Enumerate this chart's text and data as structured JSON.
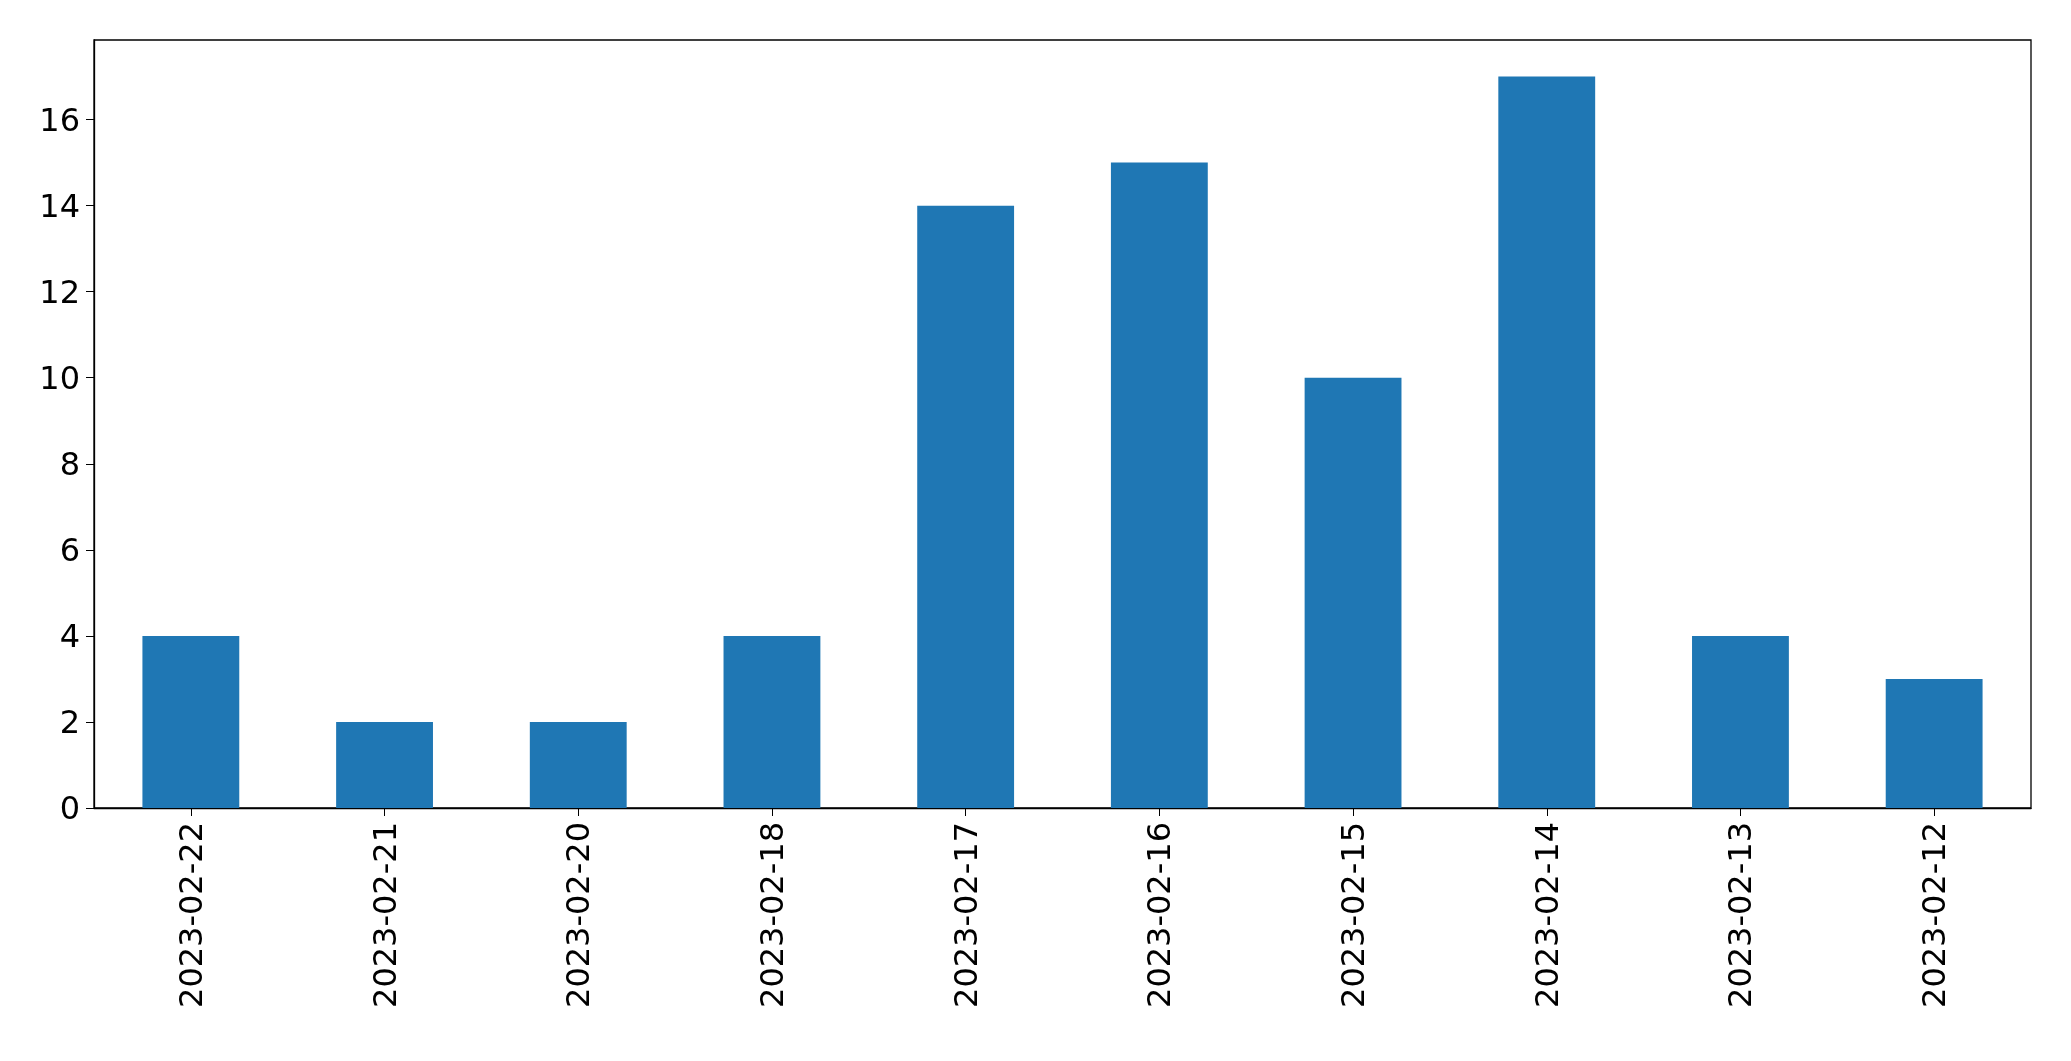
{
  "chart_data": {
    "type": "bar",
    "categories": [
      "2023-02-22",
      "2023-02-21",
      "2023-02-20",
      "2023-02-18",
      "2023-02-17",
      "2023-02-16",
      "2023-02-15",
      "2023-02-14",
      "2023-02-13",
      "2023-02-12"
    ],
    "values": [
      4,
      2,
      2,
      4,
      14,
      15,
      10,
      17,
      4,
      3
    ],
    "color": "#1f77b4",
    "ylim": [
      0,
      17.85
    ],
    "yticks": [
      0,
      2,
      4,
      6,
      8,
      10,
      12,
      14,
      16
    ],
    "grid": false
  }
}
